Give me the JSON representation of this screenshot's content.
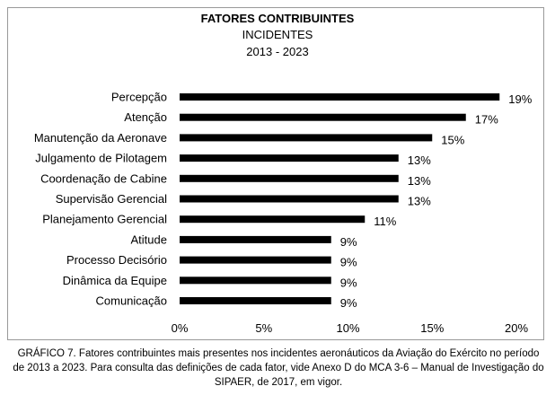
{
  "chart_data": {
    "type": "bar",
    "orientation": "horizontal",
    "title": "FATORES CONTRIBUINTES",
    "subtitle": "INCIDENTES",
    "period": "2013 - 2023",
    "categories": [
      "Percepção",
      "Atenção",
      "Manutenção da Aeronave",
      "Julgamento de Pilotagem",
      "Coordenação de Cabine",
      "Supervisão Gerencial",
      "Planejamento Gerencial",
      "Atitude",
      "Processo Decisório",
      "Dinâmica da Equipe",
      "Comunicação"
    ],
    "values": [
      19,
      17,
      15,
      13,
      13,
      13,
      11,
      9,
      9,
      9,
      9
    ],
    "value_labels": [
      "19%",
      "17%",
      "15%",
      "13%",
      "13%",
      "13%",
      "11%",
      "9%",
      "9%",
      "9%",
      "9%"
    ],
    "xlim": [
      0,
      20
    ],
    "xticks": [
      0,
      5,
      10,
      15,
      20
    ],
    "xtick_labels": [
      "0%",
      "5%",
      "10%",
      "15%",
      "20%"
    ],
    "grid": false,
    "legend": "none",
    "bar_color": "#000000"
  },
  "caption": "GRÁFICO 7. Fatores contribuintes mais presentes nos incidentes aeronáuticos da Aviação do Exército no período de 2013 a 2023. Para consulta das definições de cada fator, vide Anexo D do MCA 3-6 – Manual de Investigação do SIPAER, de 2017, em vigor."
}
